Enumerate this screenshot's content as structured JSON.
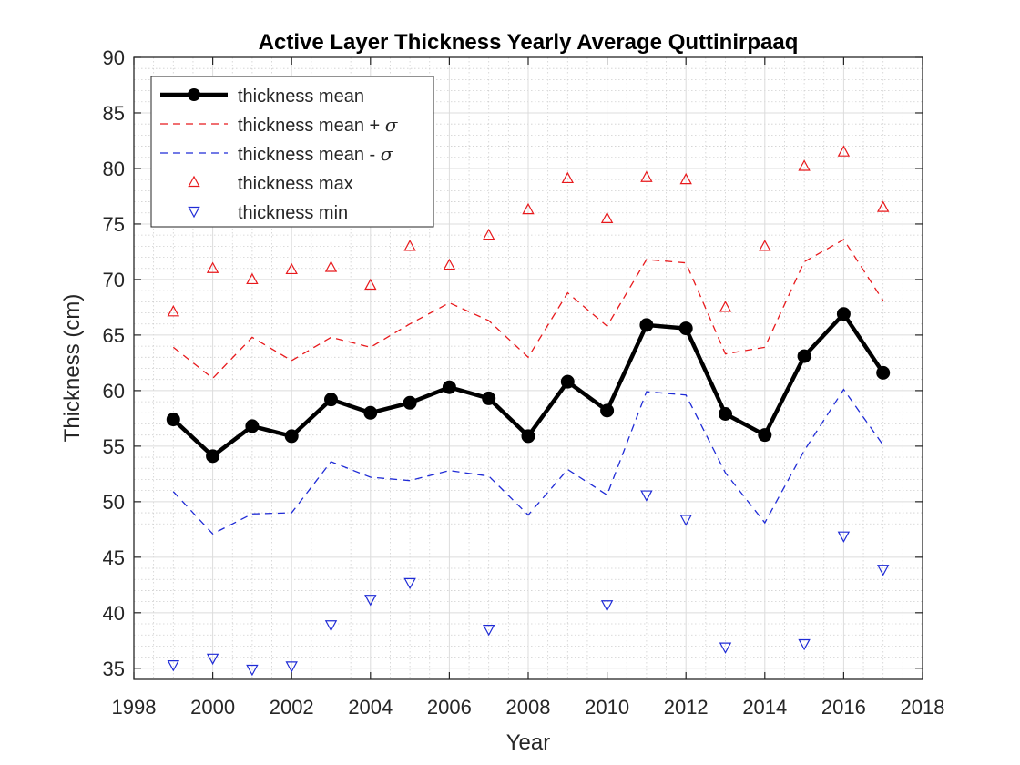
{
  "chart_data": {
    "type": "line",
    "title": "Active Layer Thickness Yearly Average Quttinirpaaq",
    "xlabel": "Year",
    "ylabel": "Thickness (cm)",
    "xlim": [
      1998,
      2018
    ],
    "ylim": [
      34,
      90
    ],
    "xticks": [
      1998,
      2000,
      2002,
      2004,
      2006,
      2008,
      2010,
      2012,
      2014,
      2016,
      2018
    ],
    "yticks": [
      35,
      40,
      45,
      50,
      55,
      60,
      65,
      70,
      75,
      80,
      85,
      90
    ],
    "grid": true,
    "minor_grid": true,
    "legend_position": "top-left",
    "x": [
      1999,
      2000,
      2001,
      2002,
      2003,
      2004,
      2005,
      2006,
      2007,
      2008,
      2009,
      2010,
      2011,
      2012,
      2013,
      2014,
      2015,
      2016,
      2017
    ],
    "series": [
      {
        "key": "mean",
        "name": "thickness mean",
        "style": "solid-markers",
        "color": "#000000",
        "values": [
          57.4,
          54.1,
          56.8,
          55.9,
          59.2,
          58.0,
          58.9,
          60.3,
          59.3,
          55.9,
          60.8,
          58.2,
          65.9,
          65.6,
          57.9,
          56.0,
          63.1,
          66.9,
          61.6
        ]
      },
      {
        "key": "plus_sigma",
        "name": "thickness mean + ",
        "name_symbol": "σ",
        "style": "dashed",
        "color": "#e8191c",
        "values": [
          63.9,
          61.1,
          64.8,
          62.7,
          64.8,
          63.9,
          66.0,
          67.9,
          66.3,
          63.0,
          68.8,
          65.8,
          71.8,
          71.5,
          63.3,
          63.9,
          71.6,
          73.6,
          68.1
        ]
      },
      {
        "key": "minus_sigma",
        "name": "thickness mean - ",
        "name_symbol": "σ",
        "style": "dashed",
        "color": "#1f2bd6",
        "values": [
          50.9,
          47.1,
          48.9,
          49.0,
          53.6,
          52.2,
          51.9,
          52.8,
          52.3,
          48.8,
          52.9,
          50.6,
          59.9,
          59.6,
          52.6,
          48.1,
          54.6,
          60.1,
          55.1
        ]
      },
      {
        "key": "max",
        "name": "thickness max",
        "style": "triangle-up",
        "color": "#e8191c",
        "values": [
          67.1,
          71.0,
          70.0,
          70.9,
          71.1,
          69.5,
          73.0,
          71.3,
          74.0,
          76.3,
          79.1,
          75.5,
          79.2,
          79.0,
          67.5,
          73.0,
          80.2,
          81.5,
          76.5
        ]
      },
      {
        "key": "min",
        "name": "thickness min",
        "style": "triangle-down",
        "color": "#1f2bd6",
        "values": [
          35.3,
          35.9,
          34.9,
          35.2,
          38.9,
          41.2,
          42.7,
          null,
          38.5,
          null,
          null,
          40.7,
          50.6,
          48.4,
          36.9,
          null,
          37.2,
          46.9,
          43.9
        ]
      }
    ]
  }
}
